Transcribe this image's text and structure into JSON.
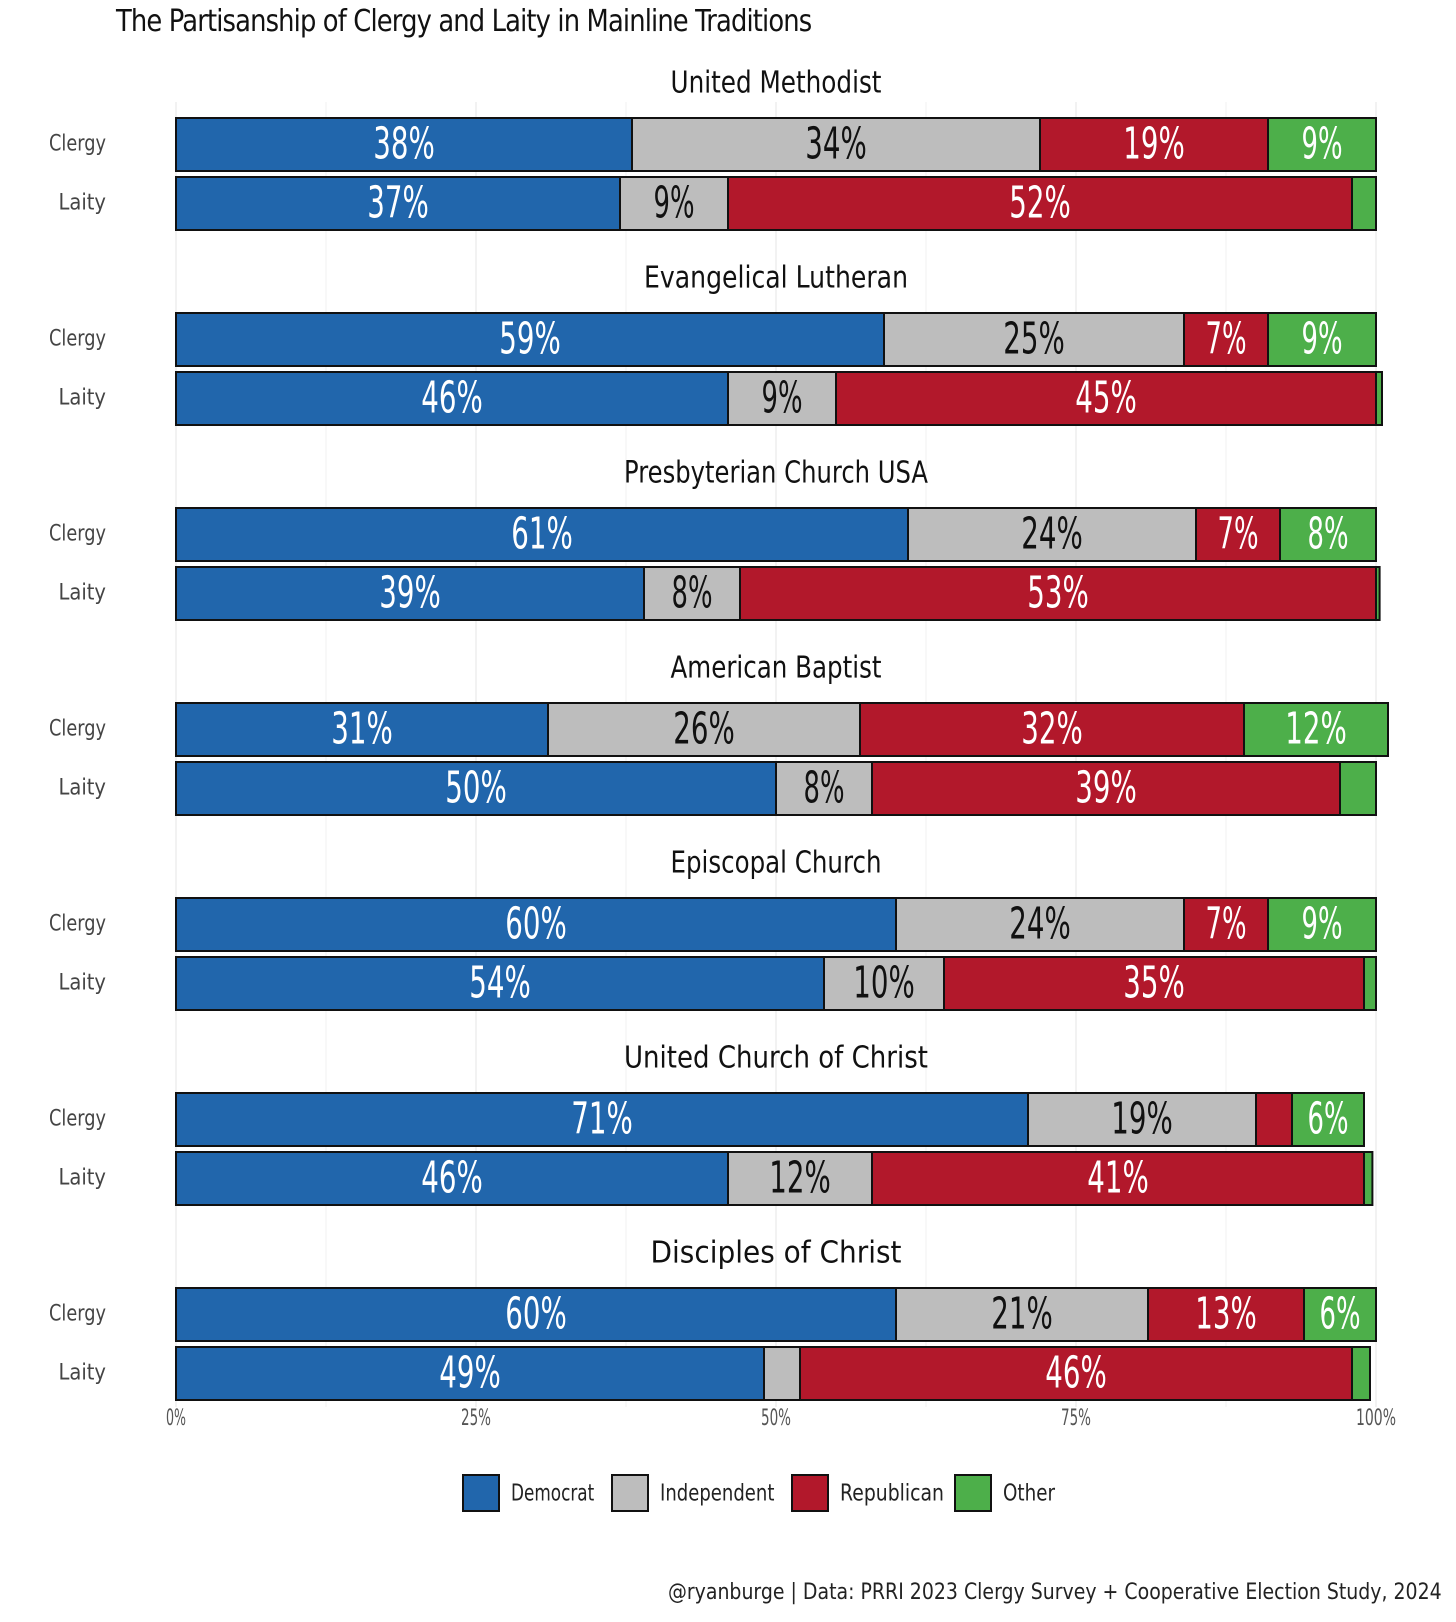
{
  "chart_data": {
    "type": "bar",
    "orientation": "horizontal",
    "stacked": true,
    "title": "The Partisanship of Clergy and Laity in Mainline Traditions",
    "caption": "@ryanburge | Data: PRRI 2023 Clergy Survey + Cooperative Election Study, 2024",
    "xlim": [
      0,
      100
    ],
    "x_ticks": [
      "0%",
      "25%",
      "50%",
      "75%",
      "100%"
    ],
    "legend_position": "bottom",
    "series": [
      {
        "name": "Democrat",
        "color": "#2166ac"
      },
      {
        "name": "Independent",
        "color": "#bdbdbd"
      },
      {
        "name": "Republican",
        "color": "#b2182b"
      },
      {
        "name": "Other",
        "color": "#4daf4a"
      }
    ],
    "panels": [
      {
        "name": "United Methodist",
        "rows": [
          {
            "label": "Clergy",
            "values": [
              38,
              34,
              19,
              9
            ],
            "text": [
              "38%",
              "34%",
              "19%",
              "9%"
            ]
          },
          {
            "label": "Laity",
            "values": [
              37,
              9,
              52,
              2
            ],
            "text": [
              "37%",
              "9%",
              "52%",
              ""
            ]
          }
        ]
      },
      {
        "name": "Evangelical Lutheran",
        "rows": [
          {
            "label": "Clergy",
            "values": [
              59,
              25,
              7,
              9
            ],
            "text": [
              "59%",
              "25%",
              "7%",
              "9%"
            ]
          },
          {
            "label": "Laity",
            "values": [
              46,
              9,
              45,
              0.5
            ],
            "text": [
              "46%",
              "9%",
              "45%",
              ""
            ]
          }
        ]
      },
      {
        "name": "Presbyterian Church USA",
        "rows": [
          {
            "label": "Clergy",
            "values": [
              61,
              24,
              7,
              8
            ],
            "text": [
              "61%",
              "24%",
              "7%",
              "8%"
            ]
          },
          {
            "label": "Laity",
            "values": [
              39,
              8,
              53,
              0.3
            ],
            "text": [
              "39%",
              "8%",
              "53%",
              ""
            ]
          }
        ]
      },
      {
        "name": "American Baptist",
        "rows": [
          {
            "label": "Clergy",
            "values": [
              31,
              26,
              32,
              12
            ],
            "text": [
              "31%",
              "26%",
              "32%",
              "12%"
            ]
          },
          {
            "label": "Laity",
            "values": [
              50,
              8,
              39,
              3
            ],
            "text": [
              "50%",
              "8%",
              "39%",
              ""
            ]
          }
        ]
      },
      {
        "name": "Episcopal Church",
        "rows": [
          {
            "label": "Clergy",
            "values": [
              60,
              24,
              7,
              9
            ],
            "text": [
              "60%",
              "24%",
              "7%",
              "9%"
            ]
          },
          {
            "label": "Laity",
            "values": [
              54,
              10,
              35,
              1
            ],
            "text": [
              "54%",
              "10%",
              "35%",
              ""
            ]
          }
        ]
      },
      {
        "name": "United Church of Christ",
        "rows": [
          {
            "label": "Clergy",
            "values": [
              71,
              19,
              3,
              6
            ],
            "text": [
              "71%",
              "19%",
              "",
              "6%"
            ]
          },
          {
            "label": "Laity",
            "values": [
              46,
              12,
              41,
              0.7
            ],
            "text": [
              "46%",
              "12%",
              "41%",
              ""
            ]
          }
        ]
      },
      {
        "name": "Disciples of Christ",
        "rows": [
          {
            "label": "Clergy",
            "values": [
              60,
              21,
              13,
              6
            ],
            "text": [
              "60%",
              "21%",
              "13%",
              "6%"
            ]
          },
          {
            "label": "Laity",
            "values": [
              49,
              3,
              46,
              1.5
            ],
            "text": [
              "49%",
              "",
              "46%",
              ""
            ]
          }
        ]
      }
    ]
  }
}
